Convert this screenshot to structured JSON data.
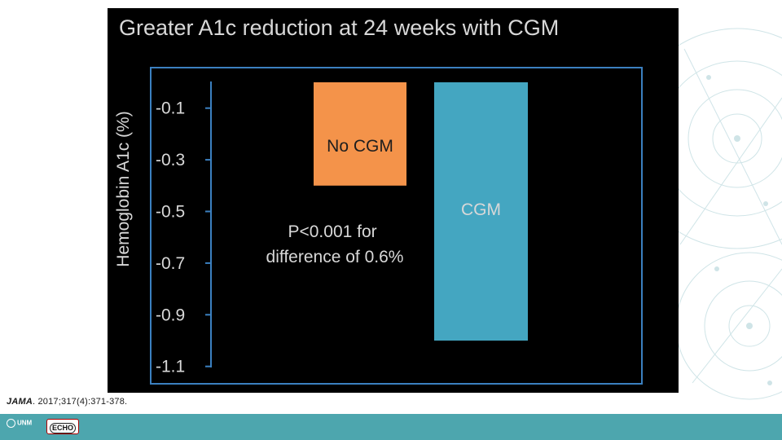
{
  "chart_data": {
    "type": "bar",
    "title": "Greater A1c reduction at 24 weeks with CGM",
    "ylabel": "Hemoglobin A1c (%)",
    "xlabel": "",
    "categories": [
      "No CGM",
      "CGM"
    ],
    "values": [
      -0.4,
      -1.0
    ],
    "ylim": [
      0.0,
      -1.1
    ],
    "yticks": [
      -0.1,
      -0.3,
      -0.5,
      -0.7,
      -0.9,
      -1.1
    ],
    "ytick_labels": [
      "-0.1",
      "-0.3",
      "-0.5",
      "-0.7",
      "-0.9",
      "-1.1"
    ],
    "bar_colors": [
      "#f4934a",
      "#44a6c1"
    ],
    "annotation": "P<0.001 for\ndifference of 0.6%",
    "annotation_lines": [
      "P<0.001 for",
      "difference of 0.6%"
    ],
    "grid": false,
    "legend": "none"
  },
  "colors": {
    "panel_background": "#000000",
    "axis": "#3b80c0",
    "text": "#d8d8d8",
    "footer": "#4da6ae"
  },
  "citation": {
    "journal": "JAMA",
    "ref": ". 2017;317(4):371-378."
  },
  "footer": {
    "unm_logo_text": "UNM",
    "echo_logo_text": "ECHO"
  }
}
